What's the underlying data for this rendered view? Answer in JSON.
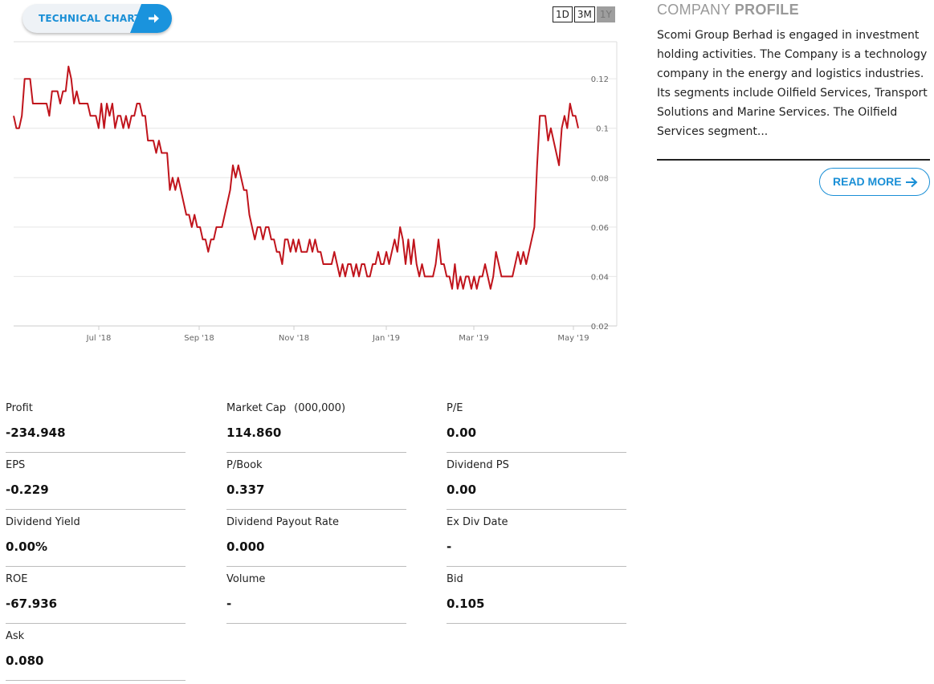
{
  "technical_chart": {
    "label": "TECHNICAL CHART",
    "icon": "arrow-right-icon"
  },
  "ranges": [
    {
      "label": "1D",
      "active": false
    },
    {
      "label": "3M",
      "active": false
    },
    {
      "label": "1Y",
      "active": true
    }
  ],
  "chart_data": {
    "type": "line",
    "x_tick_labels": [
      "Jul '18",
      "Sep '18",
      "Nov '18",
      "Jan '19",
      "Mar '19",
      "May '19"
    ],
    "y_tick_labels": [
      "0.02",
      "0.04",
      "0.06",
      "0.08",
      "0.1",
      "0.12"
    ],
    "ylim": [
      0.02,
      0.135
    ],
    "grid": true,
    "line_color": "#c0141c",
    "series": [
      {
        "values": [
          0.105,
          0.1,
          0.1,
          0.105,
          0.12,
          0.12,
          0.12,
          0.11,
          0.11,
          0.11,
          0.11,
          0.11,
          0.11,
          0.105,
          0.115,
          0.115,
          0.115,
          0.11,
          0.115,
          0.115,
          0.125,
          0.12,
          0.11,
          0.115,
          0.11,
          0.11,
          0.11,
          0.11,
          0.105,
          0.105,
          0.105,
          0.1,
          0.11,
          0.1,
          0.11,
          0.105,
          0.11,
          0.1,
          0.105,
          0.105,
          0.1,
          0.105,
          0.1,
          0.105,
          0.105,
          0.11,
          0.11,
          0.105,
          0.105,
          0.095,
          0.095,
          0.095,
          0.09,
          0.095,
          0.09,
          0.09,
          0.09,
          0.075,
          0.08,
          0.075,
          0.08,
          0.075,
          0.07,
          0.065,
          0.065,
          0.06,
          0.065,
          0.06,
          0.06,
          0.055,
          0.055,
          0.05,
          0.055,
          0.055,
          0.06,
          0.06,
          0.06,
          0.065,
          0.07,
          0.075,
          0.085,
          0.08,
          0.085,
          0.08,
          0.075,
          0.075,
          0.065,
          0.06,
          0.055,
          0.06,
          0.06,
          0.055,
          0.06,
          0.06,
          0.055,
          0.055,
          0.05,
          0.05,
          0.045,
          0.055,
          0.055,
          0.05,
          0.055,
          0.05,
          0.055,
          0.05,
          0.05,
          0.05,
          0.055,
          0.05,
          0.055,
          0.05,
          0.05,
          0.045,
          0.045,
          0.045,
          0.045,
          0.05,
          0.045,
          0.04,
          0.045,
          0.04,
          0.045,
          0.045,
          0.04,
          0.045,
          0.04,
          0.045,
          0.045,
          0.04,
          0.04,
          0.045,
          0.045,
          0.05,
          0.045,
          0.045,
          0.05,
          0.045,
          0.05,
          0.055,
          0.05,
          0.06,
          0.055,
          0.045,
          0.055,
          0.045,
          0.055,
          0.045,
          0.04,
          0.045,
          0.04,
          0.04,
          0.04,
          0.04,
          0.045,
          0.055,
          0.045,
          0.045,
          0.04,
          0.04,
          0.035,
          0.045,
          0.035,
          0.04,
          0.035,
          0.04,
          0.04,
          0.035,
          0.04,
          0.035,
          0.04,
          0.04,
          0.045,
          0.04,
          0.035,
          0.04,
          0.05,
          0.045,
          0.04,
          0.04,
          0.04,
          0.04,
          0.04,
          0.045,
          0.05,
          0.045,
          0.05,
          0.045,
          0.05,
          0.055,
          0.06,
          0.085,
          0.105,
          0.105,
          0.105,
          0.095,
          0.1,
          0.095,
          0.09,
          0.085,
          0.1,
          0.105,
          0.1,
          0.11,
          0.105,
          0.105,
          0.1
        ]
      }
    ]
  },
  "profile": {
    "title_light": "COMPANY",
    "title_bold": "PROFILE",
    "description": "Scomi Group Berhad is engaged in investment holding activities. The Company is a technology company in the energy and logistics industries. Its segments include Oilfield Services, Transport Solutions and Marine Services. The Oilfield Services segment...",
    "read_more": "READ MORE"
  },
  "stats": [
    {
      "key": "Profit",
      "unit": "",
      "value": "-234.948"
    },
    {
      "key": "Market Cap",
      "unit": "(000,000)",
      "value": "114.860"
    },
    {
      "key": "P/E",
      "unit": "",
      "value": "0.00"
    },
    {
      "key": "EPS",
      "unit": "",
      "value": "-0.229"
    },
    {
      "key": "P/Book",
      "unit": "",
      "value": "0.337"
    },
    {
      "key": "Dividend PS",
      "unit": "",
      "value": "0.00"
    },
    {
      "key": "Dividend Yield",
      "unit": "",
      "value": "0.00%"
    },
    {
      "key": "Dividend Payout Rate",
      "unit": "",
      "value": "0.000"
    },
    {
      "key": "Ex Div Date",
      "unit": "",
      "value": "-"
    },
    {
      "key": "ROE",
      "unit": "",
      "value": "-67.936"
    },
    {
      "key": "Volume",
      "unit": "",
      "value": "-"
    },
    {
      "key": "Bid",
      "unit": "",
      "value": "0.105"
    },
    {
      "key": "Ask",
      "unit": "",
      "value": "0.080"
    }
  ]
}
